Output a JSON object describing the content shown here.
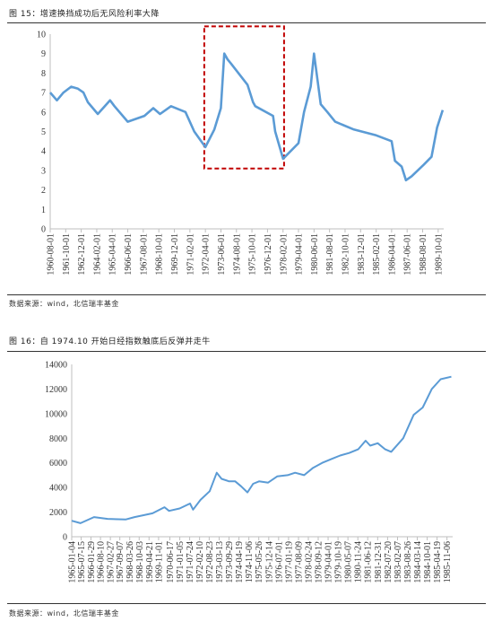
{
  "figure1": {
    "caption": "图 15：增速换挡成功后无风险利率大降",
    "source": "数据来源：wind，北信瑞丰基金"
  },
  "figure2": {
    "caption": "图 16：自 1974.10 开始日经指数触底后反弹并走牛",
    "source": "数据来源：wind，北信瑞丰基金"
  },
  "chart_data": [
    {
      "type": "line",
      "title": "",
      "xlabel": "",
      "ylabel": "",
      "ylim": [
        0,
        10
      ],
      "yticks": [
        0,
        1,
        2,
        3,
        4,
        5,
        6,
        7,
        8,
        9,
        10
      ],
      "xlim": [
        "1960-08-01",
        "1990-03-01"
      ],
      "xticks": [
        "1960-08-01",
        "1961-10-01",
        "1962-12-01",
        "1964-02-01",
        "1965-04-01",
        "1966-06-01",
        "1967-08-01",
        "1968-10-01",
        "1969-12-01",
        "1971-02-01",
        "1972-04-01",
        "1973-06-01",
        "1974-08-01",
        "1975-10-01",
        "1976-12-01",
        "1978-02-01",
        "1979-04-01",
        "1980-06-01",
        "1981-08-01",
        "1982-10-01",
        "1983-12-01",
        "1985-02-01",
        "1986-04-01",
        "1987-06-01",
        "1988-08-01",
        "1989-10-01"
      ],
      "grid": false,
      "line_color": "#5b9bd5",
      "highlight_color": "#c00000",
      "highlight_x_range": [
        "1972-03-01",
        "1978-03-01"
      ],
      "highlight_y_range": [
        3.1,
        10.4
      ],
      "series": [
        {
          "x": [
            "1960-08-01",
            "1961-02-01",
            "1961-08-01",
            "1962-03-01",
            "1962-09-01",
            "1963-02-01",
            "1963-06-01",
            "1964-03-01",
            "1965-02-01",
            "1965-06-01",
            "1966-06-01",
            "1967-09-01",
            "1968-05-01",
            "1968-11-01",
            "1969-09-01",
            "1970-10-01",
            "1971-06-01",
            "1972-04-01",
            "1972-12-01",
            "1973-06-01",
            "1973-09-01",
            "1973-12-01",
            "1974-03-01",
            "1975-06-01",
            "1975-11-01",
            "1976-01-01",
            "1977-05-01",
            "1977-07-01",
            "1978-02-01",
            "1979-04-01",
            "1979-09-01",
            "1980-03-01",
            "1980-06-01",
            "1980-12-01",
            "1981-06-01",
            "1982-01-01",
            "1983-06-01",
            "1985-02-01",
            "1986-04-01",
            "1986-07-01",
            "1987-01-01",
            "1987-05-01",
            "1987-10-01",
            "1988-09-01",
            "1989-04-01",
            "1989-09-01",
            "1990-02-01"
          ],
          "values": [
            7.0,
            6.6,
            7.0,
            7.3,
            7.2,
            7.0,
            6.5,
            5.9,
            6.6,
            6.3,
            5.5,
            5.8,
            6.2,
            5.9,
            6.3,
            6.0,
            5.0,
            4.2,
            5.1,
            6.2,
            9.0,
            8.7,
            8.5,
            7.4,
            6.5,
            6.3,
            5.8,
            5.0,
            3.6,
            4.4,
            6.0,
            7.3,
            9.0,
            6.4,
            6.0,
            5.5,
            5.1,
            4.8,
            4.5,
            3.5,
            3.2,
            2.5,
            2.7,
            3.3,
            3.7,
            5.2,
            6.1
          ]
        }
      ]
    },
    {
      "type": "line",
      "title": "",
      "xlabel": "",
      "ylabel": "",
      "ylim": [
        0,
        14000
      ],
      "yticks": [
        0,
        2000,
        4000,
        6000,
        8000,
        10000,
        12000,
        14000
      ],
      "xlim": [
        "1965-01-04",
        "1986-03-01"
      ],
      "xticks": [
        "1965-01-04",
        "1965-07-15",
        "1966-01-29",
        "1966-08-10",
        "1967-02-27",
        "1967-09-07",
        "1968-03-26",
        "1968-10-03",
        "1969-04-21",
        "1969-11-01",
        "1970-06-17",
        "1971-01-05",
        "1971-07-24",
        "1972-02-10",
        "1972-08-23",
        "1973-03-13",
        "1973-09-29",
        "1974-04-19",
        "1974-11-06",
        "1975-05-26",
        "1975-12-14",
        "1976-07-01",
        "1977-01-19",
        "1977-08-09",
        "1978-02-24",
        "1978-09-12",
        "1979-04-01",
        "1979-10-19",
        "1980-05-07",
        "1980-11-24",
        "1981-06-12",
        "1981-12-31",
        "1982-07-20",
        "1983-02-07",
        "1983-08-26",
        "1984-03-14",
        "1984-10-01",
        "1985-04-19",
        "1985-11-06"
      ],
      "grid": false,
      "line_color": "#5b9bd5",
      "series": [
        {
          "x": [
            "1965-01-04",
            "1965-07-01",
            "1966-04-01",
            "1967-01-01",
            "1968-01-01",
            "1968-07-01",
            "1969-01-01",
            "1969-07-01",
            "1970-03-01",
            "1970-06-01",
            "1971-01-01",
            "1971-08-01",
            "1971-10-01",
            "1972-03-01",
            "1972-09-01",
            "1973-01-24",
            "1973-05-01",
            "1973-10-01",
            "1974-02-01",
            "1974-06-01",
            "1974-10-09",
            "1975-02-01",
            "1975-06-01",
            "1975-12-01",
            "1976-06-01",
            "1977-01-01",
            "1977-06-01",
            "1977-12-01",
            "1978-06-01",
            "1978-12-01",
            "1979-06-01",
            "1979-12-01",
            "1980-06-01",
            "1980-12-01",
            "1981-05-01",
            "1981-08-01",
            "1982-01-01",
            "1982-06-01",
            "1982-10-01",
            "1983-06-01",
            "1984-01-01",
            "1984-07-01",
            "1985-01-01",
            "1985-07-01",
            "1986-02-01"
          ],
          "values": [
            1300,
            1100,
            1600,
            1450,
            1400,
            1600,
            1750,
            1900,
            2400,
            2100,
            2300,
            2700,
            2200,
            3000,
            3700,
            5200,
            4700,
            4500,
            4500,
            4100,
            3600,
            4300,
            4500,
            4400,
            4900,
            5000,
            5200,
            5000,
            5600,
            6000,
            6300,
            6600,
            6800,
            7100,
            7800,
            7400,
            7600,
            7100,
            6900,
            8000,
            9900,
            10500,
            12000,
            12800,
            13000
          ]
        }
      ]
    }
  ]
}
